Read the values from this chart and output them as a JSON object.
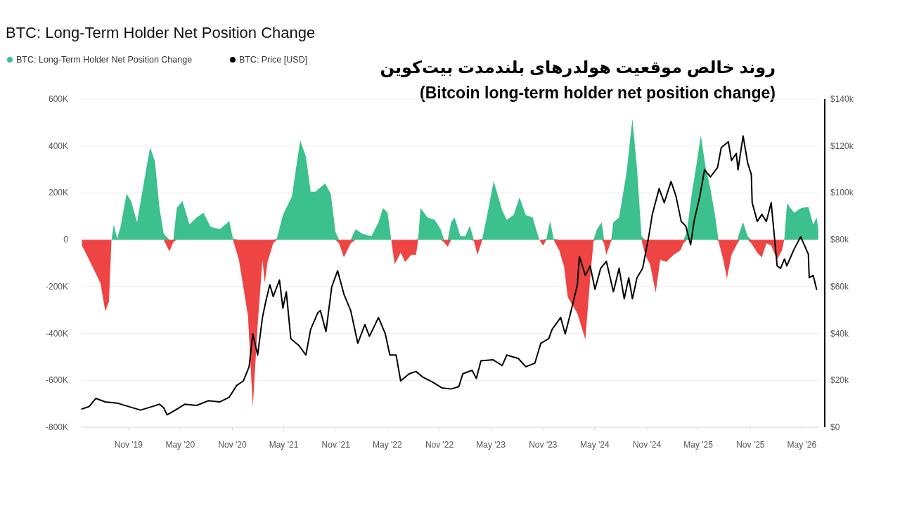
{
  "chart_data": {
    "type": "area",
    "title": "BTC: Long-Term Holder Net Position Change",
    "subtitle": "روند خالص موقعیت هولدرهای بلندمدت بیت‌کوین",
    "annotations": [
      "(Bitcoin long-term holder net position change)"
    ],
    "legend": "top left",
    "grid": "y",
    "xlim": [
      "2019-05-17",
      "2026-07-01"
    ],
    "xticks": [
      {
        "value": "2019-11-01",
        "label": "Nov '19"
      },
      {
        "value": "2020-05-01",
        "label": "May '20"
      },
      {
        "value": "2020-11-01",
        "label": "Nov '20"
      },
      {
        "value": "2021-05-01",
        "label": "May '21"
      },
      {
        "value": "2021-11-01",
        "label": "Nov '21"
      },
      {
        "value": "2022-05-01",
        "label": "May '22"
      },
      {
        "value": "2022-11-01",
        "label": "Nov '22"
      },
      {
        "value": "2023-05-01",
        "label": "May '23"
      },
      {
        "value": "2023-11-01",
        "label": "Nov '23"
      },
      {
        "value": "2024-05-01",
        "label": "May '24"
      },
      {
        "value": "2024-11-01",
        "label": "Nov '24"
      },
      {
        "value": "2025-05-01",
        "label": "May '25"
      },
      {
        "value": "2025-11-01",
        "label": "Nov '25"
      },
      {
        "value": "2026-05-01",
        "label": "May '26"
      }
    ],
    "ylim": [
      -800000,
      600000
    ],
    "yticks": [
      {
        "value": -800000,
        "label": "-800K"
      },
      {
        "value": -600000,
        "label": "-600K"
      },
      {
        "value": -400000,
        "label": "-400K"
      },
      {
        "value": -200000,
        "label": "-200K"
      },
      0,
      {
        "value": 200000,
        "label": "200K"
      },
      {
        "value": 400000,
        "label": "400K"
      },
      {
        "value": 600000,
        "label": "600K"
      }
    ],
    "y2lim": [
      0,
      140000
    ],
    "y2ticks": [
      {
        "value": 0,
        "label": "$0"
      },
      {
        "value": 20000,
        "label": "$20k"
      },
      {
        "value": 40000,
        "label": "$40k"
      },
      {
        "value": 60000,
        "label": "$60k"
      },
      {
        "value": 80000,
        "label": "$80k"
      },
      {
        "value": 100000,
        "label": "$100k"
      },
      {
        "value": 120000,
        "label": "$120k"
      },
      {
        "value": 140000,
        "label": "$140k"
      }
    ],
    "x": [
      "2019-05-21",
      "2019-06-15",
      "2019-07-09",
      "2019-07-25",
      "2019-08-11",
      "2019-08-24",
      "2019-09-02",
      "2019-09-10",
      "2019-09-22",
      "2019-10-04",
      "2019-10-25",
      "2019-11-10",
      "2019-12-01",
      "2019-12-21",
      "2020-01-16",
      "2020-02-02",
      "2020-02-18",
      "2020-03-04",
      "2020-03-24",
      "2020-04-07",
      "2020-04-19",
      "2020-05-09",
      "2020-06-03",
      "2020-06-28",
      "2020-07-22",
      "2020-08-16",
      "2020-09-18",
      "2020-10-21",
      "2020-11-03",
      "2020-11-24",
      "2020-12-10",
      "2020-12-26",
      "2021-01-12",
      "2021-01-29",
      "2021-02-15",
      "2021-02-23",
      "2021-03-05",
      "2021-03-25",
      "2021-04-07",
      "2021-04-28",
      "2021-05-30",
      "2021-06-28",
      "2021-07-18",
      "2021-08-04",
      "2021-08-21",
      "2021-09-24",
      "2021-10-14",
      "2021-10-30",
      "2021-11-12",
      "2021-11-29",
      "2021-12-23",
      "2022-01-09",
      "2022-02-03",
      "2022-03-06",
      "2022-03-31",
      "2022-04-16",
      "2022-05-02",
      "2022-05-15",
      "2022-05-27",
      "2022-06-17",
      "2022-07-03",
      "2022-07-24",
      "2022-08-10",
      "2022-08-18",
      "2022-08-26",
      "2022-09-20",
      "2022-10-15",
      "2022-11-05",
      "2022-11-17",
      "2022-11-30",
      "2022-12-12",
      "2022-12-24",
      "2023-01-14",
      "2023-01-31",
      "2023-02-16",
      "2023-03-02",
      "2023-03-15",
      "2023-04-01",
      "2023-04-13",
      "2023-05-11",
      "2023-06-10",
      "2023-06-26",
      "2023-07-20",
      "2023-08-10",
      "2023-09-01",
      "2023-09-25",
      "2023-10-19",
      "2023-11-01",
      "2023-11-13",
      "2023-11-26",
      "2023-12-08",
      "2023-12-28",
      "2024-01-14",
      "2024-01-27",
      "2024-03-01",
      "2024-03-29",
      "2024-04-15",
      "2024-04-27",
      "2024-05-09",
      "2024-05-26",
      "2024-06-03",
      "2024-06-11",
      "2024-06-28",
      "2024-07-06",
      "2024-07-26",
      "2024-08-21",
      "2024-09-11",
      "2024-09-27",
      "2024-10-13",
      "2024-10-26",
      "2024-11-12",
      "2024-12-02",
      "2024-12-18",
      "2025-01-08",
      "2025-02-03",
      "2025-02-27",
      "2025-03-10",
      "2025-03-22",
      "2025-04-08",
      "2025-04-24",
      "2025-05-10",
      "2025-05-26",
      "2025-06-13",
      "2025-06-29",
      "2025-07-11",
      "2025-07-28",
      "2025-08-10",
      "2025-08-26",
      "2025-09-16",
      "2025-09-24",
      "2025-10-06",
      "2025-10-22",
      "2025-11-04",
      "2025-11-25",
      "2025-12-11",
      "2025-12-27",
      "2026-01-13",
      "2026-02-03",
      "2026-02-20",
      "2026-02-28",
      "2026-03-10",
      "2026-04-04",
      "2026-04-29",
      "2026-05-24",
      "2026-06-10",
      "2026-06-22",
      "2026-06-28"
    ],
    "series": [
      {
        "name": "BTC: Long-Term Holder Net Position Change",
        "color": "#3cc08d",
        "values": [
          0,
          0,
          0,
          0,
          0,
          0,
          0,
          65000,
          5000,
          55000,
          195000,
          165000,
          75000,
          215000,
          395000,
          335000,
          135000,
          25000,
          0,
          0,
          135000,
          165000,
          65000,
          95000,
          115000,
          55000,
          45000,
          80000,
          5000,
          0,
          0,
          0,
          0,
          0,
          0,
          0,
          0,
          0,
          5000,
          105000,
          185000,
          425000,
          355000,
          205000,
          205000,
          240000,
          195000,
          35000,
          0,
          0,
          0,
          45000,
          25000,
          15000,
          75000,
          135000,
          115000,
          0,
          0,
          0,
          0,
          0,
          0,
          5000,
          135000,
          95000,
          85000,
          45000,
          0,
          0,
          75000,
          95000,
          15000,
          15000,
          60000,
          0,
          0,
          5000,
          75000,
          250000,
          125000,
          85000,
          105000,
          180000,
          105000,
          95000,
          0,
          0,
          5000,
          80000,
          5000,
          0,
          0,
          0,
          0,
          0,
          0,
          0,
          45000,
          75000,
          0,
          0,
          0,
          75000,
          95000,
          285000,
          515000,
          305000,
          15000,
          0,
          0,
          0,
          0,
          0,
          0,
          0,
          0,
          35000,
          195000,
          315000,
          445000,
          315000,
          215000,
          105000,
          0,
          0,
          0,
          0,
          0,
          35000,
          75000,
          15000,
          0,
          0,
          0,
          0,
          0,
          0,
          0,
          0,
          155000,
          115000,
          135000,
          140000,
          65000,
          95000,
          45000
        ]
      },
      {
        "color": "#ee4444",
        "values": [
          -25000,
          -85000,
          -145000,
          -185000,
          -305000,
          -265000,
          0,
          0,
          0,
          0,
          0,
          0,
          0,
          0,
          0,
          0,
          0,
          0,
          -50000,
          -10000,
          0,
          0,
          0,
          0,
          0,
          0,
          0,
          0,
          0,
          -85000,
          -205000,
          -325000,
          -715000,
          -365000,
          -85000,
          -185000,
          -95000,
          -15000,
          0,
          0,
          0,
          0,
          0,
          0,
          0,
          0,
          0,
          0,
          -15000,
          -75000,
          -15000,
          0,
          0,
          0,
          0,
          0,
          0,
          0,
          -105000,
          -55000,
          -95000,
          -65000,
          -65000,
          0,
          0,
          0,
          0,
          0,
          -10000,
          -30000,
          0,
          0,
          0,
          0,
          0,
          -5000,
          -65000,
          0,
          0,
          0,
          0,
          0,
          0,
          0,
          0,
          0,
          0,
          -25000,
          0,
          0,
          0,
          -45000,
          -115000,
          -245000,
          -315000,
          -425000,
          -165000,
          -5000,
          0,
          0,
          -15000,
          -65000,
          -5000,
          0,
          0,
          0,
          0,
          0,
          0,
          -65000,
          -105000,
          -225000,
          -85000,
          -95000,
          -65000,
          -45000,
          -15000,
          0,
          0,
          0,
          0,
          0,
          0,
          0,
          -5000,
          -85000,
          -165000,
          -65000,
          -15000,
          0,
          0,
          0,
          -15000,
          -55000,
          -75000,
          -15000,
          -25000,
          -85000,
          -45000,
          0,
          0,
          0,
          0,
          0,
          0,
          0,
          0
        ]
      },
      {
        "name": "BTC: Price [USD]",
        "type": "line",
        "axis": "y2",
        "color": "#000000",
        "x": [
          "2019-05-21",
          "2019-06-15",
          "2019-07-09",
          "2019-08-11",
          "2019-09-22",
          "2019-11-02",
          "2019-12-13",
          "2020-01-23",
          "2020-02-18",
          "2020-03-04",
          "2020-03-16",
          "2020-04-14",
          "2020-05-17",
          "2020-06-28",
          "2020-08-08",
          "2020-09-18",
          "2020-10-21",
          "2020-11-16",
          "2020-12-10",
          "2020-12-30",
          "2021-01-12",
          "2021-01-29",
          "2021-02-15",
          "2021-02-27",
          "2021-03-13",
          "2021-03-25",
          "2021-04-16",
          "2021-04-28",
          "2021-05-10",
          "2021-05-26",
          "2021-06-24",
          "2021-07-18",
          "2021-08-04",
          "2021-08-29",
          "2021-09-07",
          "2021-09-27",
          "2021-10-17",
          "2021-11-07",
          "2021-11-29",
          "2021-12-23",
          "2022-01-17",
          "2022-02-11",
          "2022-02-27",
          "2022-03-31",
          "2022-04-24",
          "2022-05-10",
          "2022-06-01",
          "2022-06-17",
          "2022-07-17",
          "2022-08-10",
          "2022-09-04",
          "2022-10-07",
          "2022-11-09",
          "2022-12-12",
          "2023-01-08",
          "2023-01-22",
          "2023-02-24",
          "2023-03-11",
          "2023-03-27",
          "2023-05-08",
          "2023-06-10",
          "2023-06-26",
          "2023-08-06",
          "2023-09-01",
          "2023-10-03",
          "2023-10-24",
          "2023-11-21",
          "2023-12-03",
          "2024-01-02",
          "2024-01-18",
          "2024-02-04",
          "2024-03-01",
          "2024-03-08",
          "2024-03-29",
          "2024-04-15",
          "2024-05-02",
          "2024-05-22",
          "2024-06-11",
          "2024-07-06",
          "2024-07-26",
          "2024-08-13",
          "2024-08-29",
          "2024-09-11",
          "2024-09-27",
          "2024-10-17",
          "2024-11-08",
          "2024-11-20",
          "2024-12-14",
          "2025-01-01",
          "2025-01-25",
          "2025-02-11",
          "2025-03-02",
          "2025-03-18",
          "2025-04-04",
          "2025-04-16",
          "2025-05-07",
          "2025-05-23",
          "2025-06-13",
          "2025-07-08",
          "2025-07-21",
          "2025-08-15",
          "2025-08-26",
          "2025-09-12",
          "2025-09-18",
          "2025-10-06",
          "2025-10-22",
          "2025-11-04",
          "2025-11-07",
          "2025-11-25",
          "2025-12-11",
          "2025-12-27",
          "2026-01-13",
          "2026-02-03",
          "2026-02-15",
          "2026-03-01",
          "2026-03-09",
          "2026-04-03",
          "2026-04-27",
          "2026-05-24",
          "2026-05-27",
          "2026-06-10",
          "2026-06-22"
        ],
        "values": [
          7800,
          8800,
          12300,
          10800,
          10300,
          8800,
          7300,
          8800,
          9800,
          8300,
          5300,
          7300,
          9800,
          9300,
          11300,
          10800,
          12800,
          17800,
          19800,
          25800,
          39800,
          30800,
          46800,
          53800,
          60800,
          55800,
          62800,
          50800,
          57800,
          37800,
          34800,
          30800,
          41800,
          48800,
          49800,
          40800,
          59800,
          66800,
          56800,
          49800,
          35800,
          43800,
          38800,
          46800,
          39800,
          30800,
          30800,
          19800,
          22800,
          23800,
          21300,
          19300,
          16800,
          16300,
          17300,
          22800,
          24300,
          20800,
          28300,
          28800,
          26300,
          30800,
          29300,
          25800,
          27300,
          35800,
          37800,
          41800,
          46800,
          39800,
          47800,
          60800,
          72800,
          64800,
          68800,
          58800,
          67800,
          70800,
          57800,
          67800,
          54800,
          63800,
          54800,
          63800,
          67800,
          81800,
          90800,
          101800,
          95800,
          104800,
          98800,
          87800,
          85800,
          77800,
          87800,
          98800,
          109800,
          106800,
          110800,
          119300,
          121800,
          113800,
          116800,
          109800,
          124300,
          112800,
          107800,
          95800,
          87800,
          90800,
          87800,
          95800,
          68800,
          67800,
          71800,
          68800,
          75800,
          81300,
          73800,
          63800,
          64800,
          58800
        ]
      }
    ]
  }
}
